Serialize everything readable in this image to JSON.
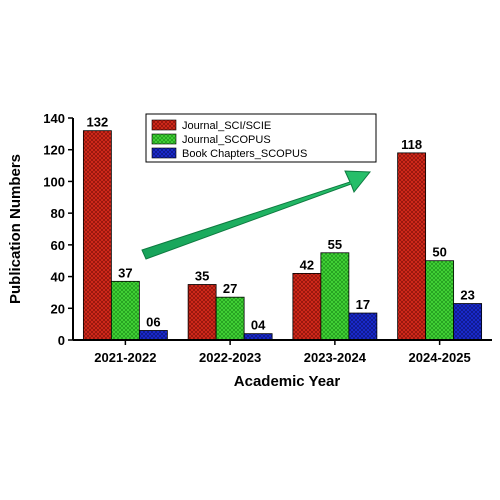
{
  "chart_data": {
    "type": "bar",
    "categories": [
      "2021-2022",
      "2022-2023",
      "2023-2024",
      "2024-2025"
    ],
    "series": [
      {
        "name": "Journal_SCI/SCIE",
        "values": [
          132,
          35,
          42,
          118
        ],
        "labels": [
          "132",
          "35",
          "42",
          "118"
        ],
        "color": "#d42a1c"
      },
      {
        "name": "Journal_SCOPUS",
        "values": [
          37,
          27,
          55,
          50
        ],
        "labels": [
          "37",
          "27",
          "55",
          "50"
        ],
        "color": "#43d437"
      },
      {
        "name": "Book Chapters_SCOPUS",
        "values": [
          6,
          4,
          17,
          23
        ],
        "labels": [
          "06",
          "04",
          "17",
          "23"
        ],
        "color": "#1a2bd0"
      }
    ],
    "xlabel": "Academic Year",
    "ylabel": "Publication Numbers",
    "ylim": [
      0,
      140
    ],
    "yticks": [
      "0",
      "20",
      "40",
      "60",
      "80",
      "100",
      "120",
      "140"
    ],
    "legend_position": "top-center",
    "annotations": [
      {
        "type": "arrow",
        "direction": "up-right",
        "color": "#1fa55a"
      }
    ],
    "grid": false
  }
}
